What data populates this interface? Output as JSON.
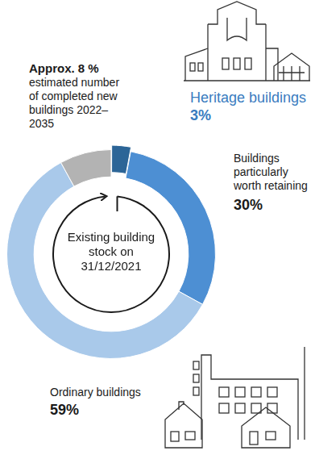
{
  "chart_data": {
    "type": "doughnut",
    "center_text": "Existing building stock on 31/12/2021",
    "categories": [
      "Heritage buildings",
      "Buildings particularly worth retaining",
      "Ordinary buildings",
      "estimated number of completed new buildings 2022–2035"
    ],
    "values": [
      3,
      30,
      59,
      8
    ],
    "value_labels": [
      "3%",
      "30%",
      "59%",
      "Approx. 8 %"
    ],
    "colors": [
      "#2c6597",
      "#4d8fd3",
      "#a9c9ea",
      "#b3b3b3"
    ]
  }
}
